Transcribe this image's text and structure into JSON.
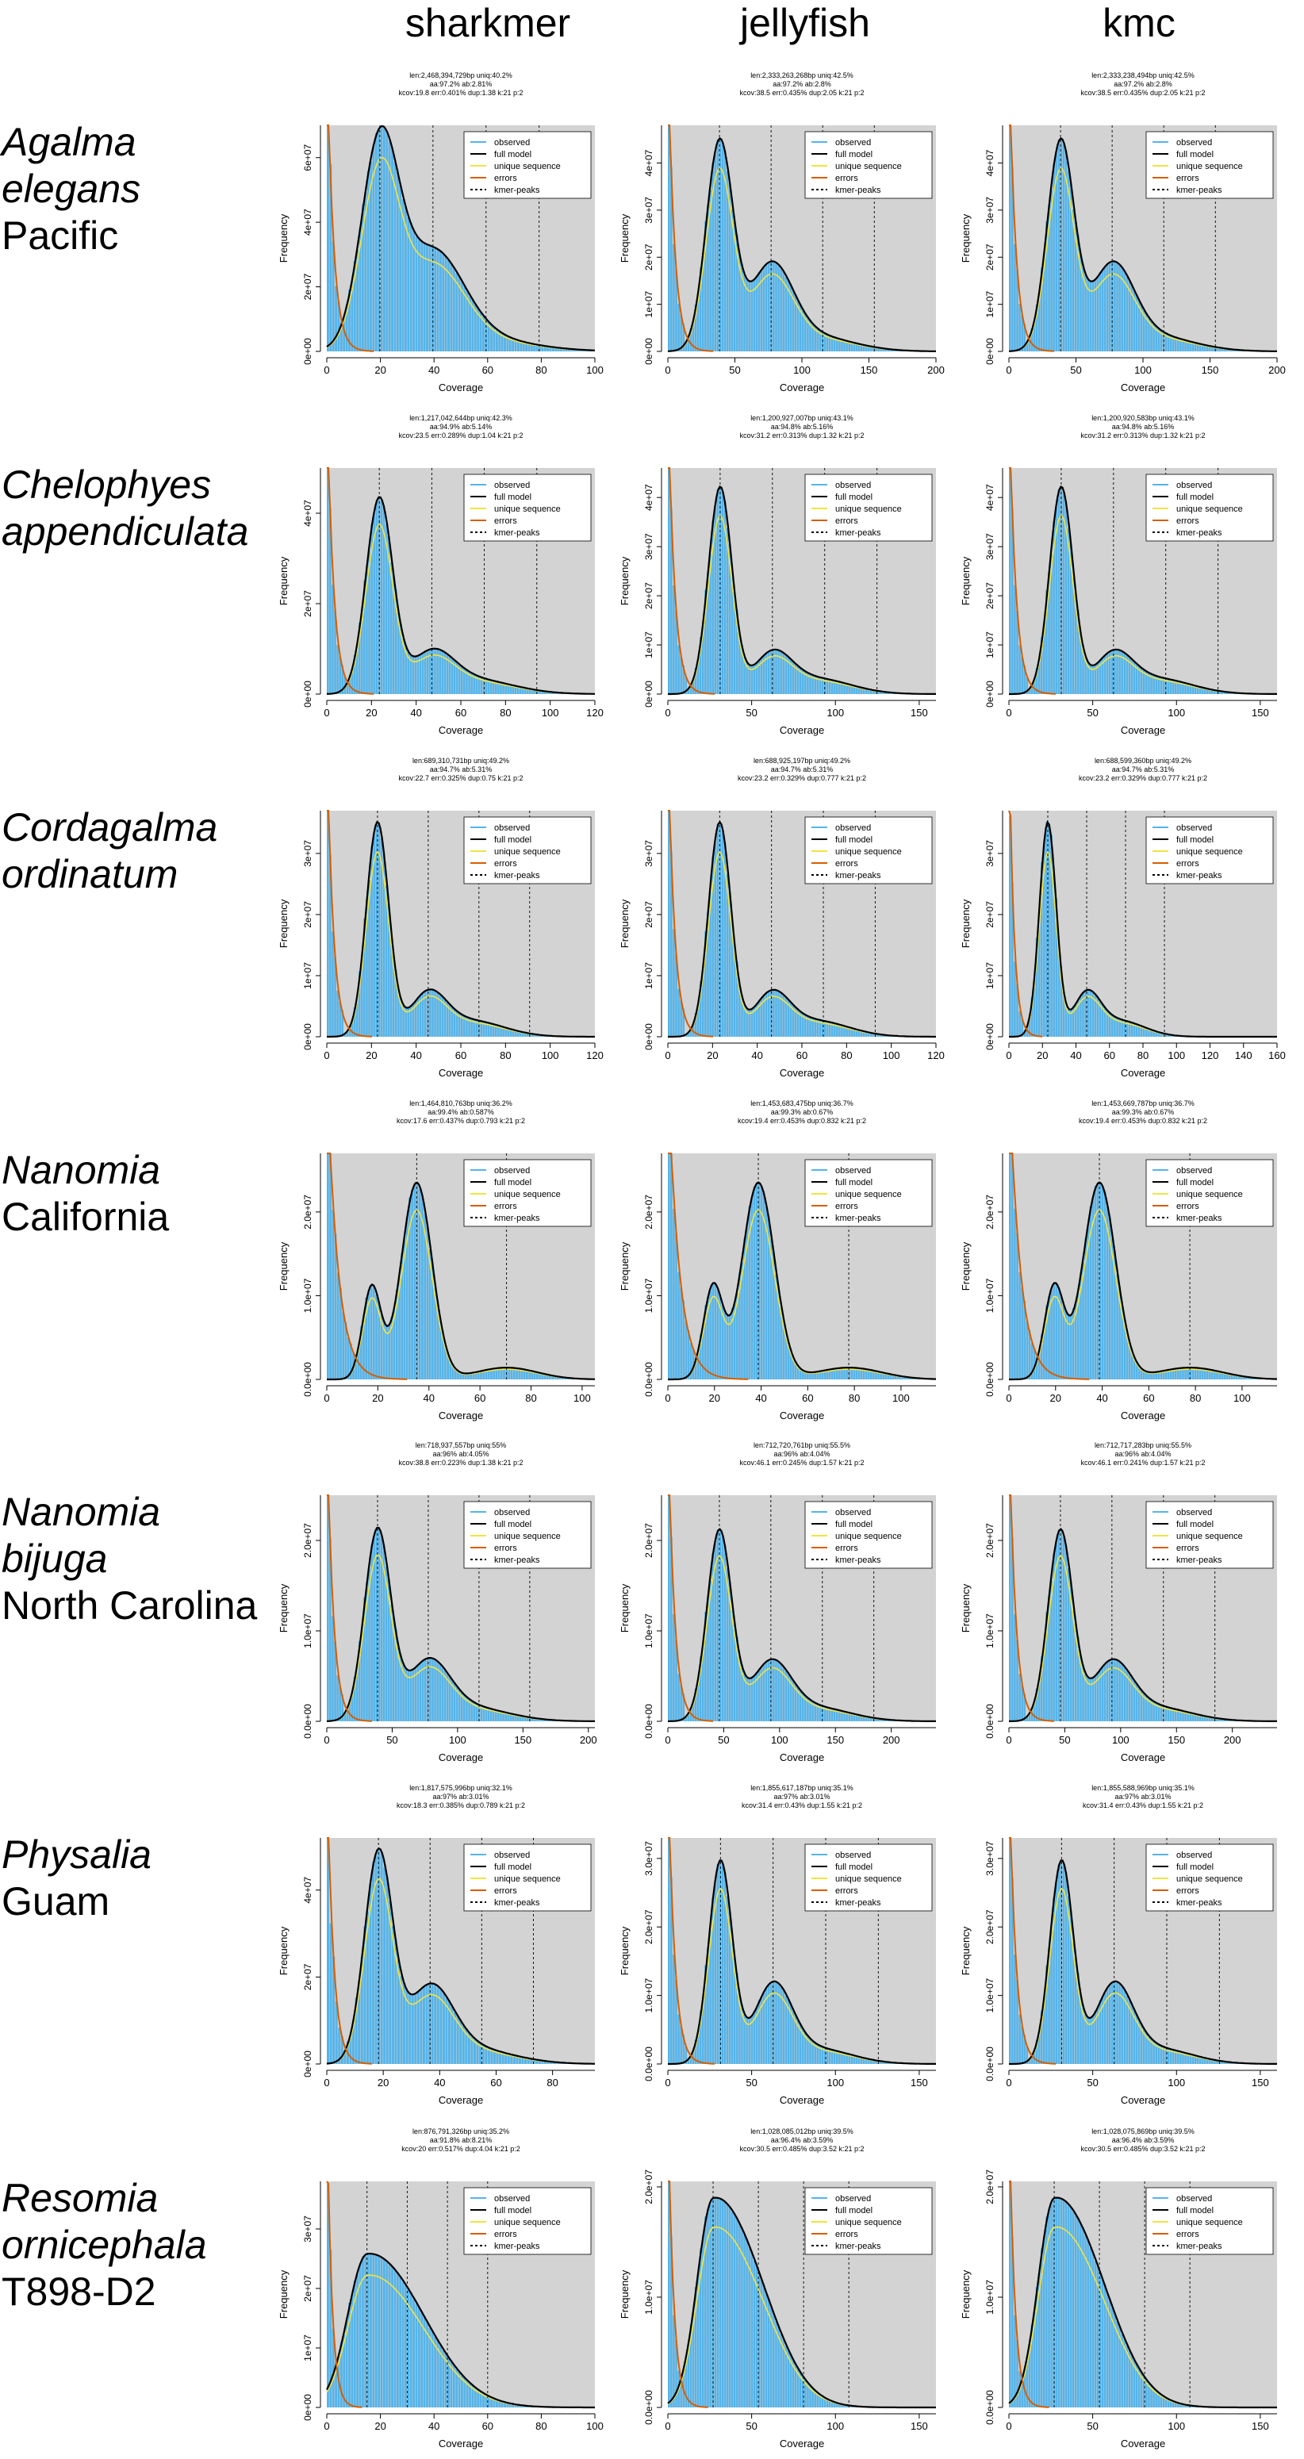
{
  "column_headers": [
    "sharkmer",
    "jellyfish",
    "kmc"
  ],
  "species": [
    {
      "name": [
        "Agalma",
        "elegans"
      ],
      "location": "Pacific"
    },
    {
      "name": [
        "Chelophyes",
        "appendiculata"
      ],
      "location": ""
    },
    {
      "name": [
        "Cordagalma",
        "ordinatum"
      ],
      "location": ""
    },
    {
      "name": [
        "Nanomia"
      ],
      "location": "California"
    },
    {
      "name": [
        "Nanomia",
        "bijuga"
      ],
      "location": "North Carolina"
    },
    {
      "name": [
        "Physalia"
      ],
      "location": "Guam"
    },
    {
      "name": [
        "Resomia",
        "ornicephala"
      ],
      "location": "T898-D2"
    }
  ],
  "legend": [
    "observed",
    "full model",
    "unique sequence",
    "errors",
    "kmer-peaks"
  ],
  "colors": {
    "panel_bg": "#d3d3d3",
    "observed": "#56b4e9",
    "full_model": "#000000",
    "unique_sequence": "#f0e442",
    "errors": "#d55e00",
    "kmer_peaks": "#000000"
  },
  "chart_data": [
    {
      "type": "area",
      "row": 0,
      "col": 0,
      "xmax": 100,
      "xticks": [
        0,
        20,
        40,
        60,
        80,
        100
      ],
      "ymax": 70000000,
      "yticks": [
        "0e+00",
        "2e+07",
        "4e+07",
        "6e+07"
      ],
      "ytickvals": [
        0,
        20000000,
        40000000,
        60000000
      ],
      "peak_x": 19.8,
      "peak_y": 62000000,
      "second_peak_y": 27000000,
      "sigma": 7,
      "header": [
        "len:2,468,394,729bp uniq:40.2%",
        "aa:97.2% ab:2.81%",
        "kcov:19.8 err:0.401% dup:1.38 k:21 p:2"
      ],
      "xlabel": "Coverage",
      "ylabel": "Frequency"
    },
    {
      "type": "area",
      "row": 0,
      "col": 1,
      "xmax": 200,
      "xticks": [
        0,
        50,
        100,
        150,
        200
      ],
      "ymax": 48000000,
      "yticks": [
        "0e+00",
        "1e+07",
        "2e+07",
        "3e+07",
        "4e+07"
      ],
      "ytickvals": [
        0,
        10000000,
        20000000,
        30000000,
        40000000
      ],
      "peak_x": 38.5,
      "peak_y": 44000000,
      "second_peak_y": 17000000,
      "sigma": 10,
      "header": [
        "len:2,333,263,268bp uniq:42.5%",
        "aa:97.2% ab:2.8%",
        "kcov:38.5 err:0.435% dup:2.05 k:21 p:2"
      ],
      "xlabel": "Coverage",
      "ylabel": "Frequency"
    },
    {
      "type": "area",
      "row": 0,
      "col": 2,
      "xmax": 200,
      "xticks": [
        0,
        50,
        100,
        150,
        200
      ],
      "ymax": 48000000,
      "yticks": [
        "0e+00",
        "1e+07",
        "2e+07",
        "3e+07",
        "4e+07"
      ],
      "ytickvals": [
        0,
        10000000,
        20000000,
        30000000,
        40000000
      ],
      "peak_x": 38.5,
      "peak_y": 44000000,
      "second_peak_y": 17000000,
      "sigma": 10,
      "header": [
        "len:2,333,238,494bp uniq:42.5%",
        "aa:97.2% ab:2.8%",
        "kcov:38.5 err:0.435% dup:2.05 k:21 p:2"
      ],
      "xlabel": "Coverage",
      "ylabel": "Frequency"
    },
    {
      "type": "area",
      "row": 1,
      "col": 0,
      "xmax": 120,
      "xticks": [
        0,
        20,
        40,
        60,
        80,
        100,
        120
      ],
      "ymax": 50000000,
      "yticks": [
        "0e+00",
        "2e+07",
        "4e+07"
      ],
      "ytickvals": [
        0,
        20000000,
        40000000
      ],
      "peak_x": 23.5,
      "peak_y": 43000000,
      "second_peak_y": 8000000,
      "sigma": 6,
      "header": [
        "len:1,217,042,644bp uniq:42.3%",
        "aa:94.9% ab:5.14%",
        "kcov:23.5 err:0.289% dup:1.04 k:21 p:2"
      ],
      "xlabel": "Coverage",
      "ylabel": "Frequency"
    },
    {
      "type": "area",
      "row": 1,
      "col": 1,
      "xmax": 160,
      "xticks": [
        0,
        50,
        100,
        150
      ],
      "ymax": 46000000,
      "yticks": [
        "0e+00",
        "1e+07",
        "2e+07",
        "3e+07",
        "4e+07"
      ],
      "ytickvals": [
        0,
        10000000,
        20000000,
        30000000,
        40000000
      ],
      "peak_x": 31.2,
      "peak_y": 42000000,
      "second_peak_y": 7500000,
      "sigma": 7,
      "header": [
        "len:1,200,927,007bp uniq:43.1%",
        "aa:94.8% ab:5.16%",
        "kcov:31.2 err:0.313% dup:1.32 k:21 p:2"
      ],
      "xlabel": "Coverage",
      "ylabel": "Frequency"
    },
    {
      "type": "area",
      "row": 1,
      "col": 2,
      "xmax": 160,
      "xticks": [
        0,
        50,
        100,
        150
      ],
      "ymax": 46000000,
      "yticks": [
        "0e+00",
        "1e+07",
        "2e+07",
        "3e+07",
        "4e+07"
      ],
      "ytickvals": [
        0,
        10000000,
        20000000,
        30000000,
        40000000
      ],
      "peak_x": 31.2,
      "peak_y": 42000000,
      "second_peak_y": 7500000,
      "sigma": 7,
      "header": [
        "len:1,200,920,583bp uniq:43.1%",
        "aa:94.8% ab:5.16%",
        "kcov:31.2 err:0.313% dup:1.32 k:21 p:2"
      ],
      "xlabel": "Coverage",
      "ylabel": "Frequency"
    },
    {
      "type": "area",
      "row": 2,
      "col": 0,
      "xmax": 120,
      "xticks": [
        0,
        20,
        40,
        60,
        80,
        100,
        120
      ],
      "ymax": 37000000,
      "yticks": [
        "0e+00",
        "1e+07",
        "2e+07",
        "3e+07"
      ],
      "ytickvals": [
        0,
        10000000,
        20000000,
        30000000
      ],
      "peak_x": 22.7,
      "peak_y": 35000000,
      "second_peak_y": 6500000,
      "sigma": 5,
      "header": [
        "len:689,310,731bp uniq:49.2%",
        "aa:94.7% ab:5.31%",
        "kcov:22.7 err:0.325% dup:0.75 k:21 p:2"
      ],
      "xlabel": "Coverage",
      "ylabel": "Frequency"
    },
    {
      "type": "area",
      "row": 2,
      "col": 1,
      "xmax": 120,
      "xticks": [
        0,
        20,
        40,
        60,
        80,
        100,
        120
      ],
      "ymax": 37000000,
      "yticks": [
        "0e+00",
        "1e+07",
        "2e+07",
        "3e+07"
      ],
      "ytickvals": [
        0,
        10000000,
        20000000,
        30000000
      ],
      "peak_x": 23.2,
      "peak_y": 35000000,
      "second_peak_y": 6500000,
      "sigma": 5,
      "header": [
        "len:688,925,197bp uniq:49.2%",
        "aa:94.7% ab:5.31%",
        "kcov:23.2 err:0.329% dup:0.777 k:21 p:2"
      ],
      "xlabel": "Coverage",
      "ylabel": "Frequency"
    },
    {
      "type": "area",
      "row": 2,
      "col": 2,
      "xmax": 160,
      "xticks": [
        0,
        20,
        40,
        60,
        80,
        100,
        120,
        140,
        160
      ],
      "ymax": 37000000,
      "yticks": [
        "0e+00",
        "1e+07",
        "2e+07",
        "3e+07"
      ],
      "ytickvals": [
        0,
        10000000,
        20000000,
        30000000
      ],
      "peak_x": 23.2,
      "peak_y": 35000000,
      "second_peak_y": 6500000,
      "sigma": 5,
      "header": [
        "len:688,599,360bp uniq:49.2%",
        "aa:94.7% ab:5.31%",
        "kcov:23.2 err:0.329% dup:0.777 k:21 p:2"
      ],
      "xlabel": "Coverage",
      "ylabel": "Frequency"
    },
    {
      "type": "area",
      "row": 3,
      "col": 0,
      "xmax": 105,
      "xticks": [
        0,
        20,
        40,
        60,
        80,
        100
      ],
      "ymax": 27000000,
      "yticks": [
        "0.0e+00",
        "1.0e+07",
        "2.0e+07"
      ],
      "ytickvals": [
        0,
        10000000,
        20000000
      ],
      "peak_x": 35.2,
      "peak_y": 23500000,
      "second_peak_y": 11000000,
      "sigma": 6,
      "diploid": true,
      "header": [
        "len:1,464,810,763bp uniq:36.2%",
        "aa:99.4% ab:0.587%",
        "kcov:17.6 err:0.437% dup:0.793 k:21 p:2"
      ],
      "xlabel": "Coverage",
      "ylabel": "Frequency"
    },
    {
      "type": "area",
      "row": 3,
      "col": 1,
      "xmax": 115,
      "xticks": [
        0,
        20,
        40,
        60,
        80,
        100
      ],
      "ymax": 27000000,
      "yticks": [
        "0.0e+00",
        "1.0e+07",
        "2.0e+07"
      ],
      "ytickvals": [
        0,
        10000000,
        20000000
      ],
      "peak_x": 38.8,
      "peak_y": 23500000,
      "second_peak_y": 11000000,
      "sigma": 7,
      "diploid": true,
      "header": [
        "len:1,453,683,475bp uniq:36.7%",
        "aa:99.3% ab:0.67%",
        "kcov:19.4 err:0.453% dup:0.832 k:21 p:2"
      ],
      "xlabel": "Coverage",
      "ylabel": "Frequency"
    },
    {
      "type": "area",
      "row": 3,
      "col": 2,
      "xmax": 115,
      "xticks": [
        0,
        20,
        40,
        60,
        80,
        100
      ],
      "ymax": 27000000,
      "yticks": [
        "0.0e+00",
        "1.0e+07",
        "2.0e+07"
      ],
      "ytickvals": [
        0,
        10000000,
        20000000
      ],
      "peak_x": 38.8,
      "peak_y": 23500000,
      "second_peak_y": 11000000,
      "sigma": 7,
      "diploid": true,
      "header": [
        "len:1,453,669,787bp uniq:36.7%",
        "aa:99.3% ab:0.67%",
        "kcov:19.4 err:0.453% dup:0.832 k:21 p:2"
      ],
      "xlabel": "Coverage",
      "ylabel": "Frequency"
    },
    {
      "type": "area",
      "row": 4,
      "col": 0,
      "xmax": 205,
      "xticks": [
        0,
        50,
        100,
        150,
        200
      ],
      "ymax": 25000000,
      "yticks": [
        "0.0e+00",
        "1.0e+07",
        "2.0e+07"
      ],
      "ytickvals": [
        0,
        10000000,
        20000000
      ],
      "peak_x": 38.8,
      "peak_y": 21000000,
      "second_peak_y": 6000000,
      "sigma": 10,
      "header": [
        "len:718,937,557bp uniq:55%",
        "aa:96% ab:4.05%",
        "kcov:38.8 err:0.223% dup:1.38 k:21 p:2"
      ],
      "xlabel": "Coverage",
      "ylabel": "Frequency"
    },
    {
      "type": "area",
      "row": 4,
      "col": 1,
      "xmax": 240,
      "xticks": [
        0,
        50,
        100,
        150,
        200
      ],
      "ymax": 25000000,
      "yticks": [
        "0.0e+00",
        "1.0e+07",
        "2.0e+07"
      ],
      "ytickvals": [
        0,
        10000000,
        20000000
      ],
      "peak_x": 46.1,
      "peak_y": 21000000,
      "second_peak_y": 6000000,
      "sigma": 11,
      "header": [
        "len:712,720,761bp uniq:55.5%",
        "aa:96% ab:4.04%",
        "kcov:46.1 err:0.245% dup:1.57 k:21 p:2"
      ],
      "xlabel": "Coverage",
      "ylabel": "Frequency"
    },
    {
      "type": "area",
      "row": 4,
      "col": 2,
      "xmax": 240,
      "xticks": [
        0,
        50,
        100,
        150,
        200
      ],
      "ymax": 25000000,
      "yticks": [
        "0.0e+00",
        "1.0e+07",
        "2.0e+07"
      ],
      "ytickvals": [
        0,
        10000000,
        20000000
      ],
      "peak_x": 46.1,
      "peak_y": 21000000,
      "second_peak_y": 6000000,
      "sigma": 11,
      "header": [
        "len:712,717,283bp uniq:55.5%",
        "aa:96% ab:4.04%",
        "kcov:46.1 err:0.241% dup:1.57 k:21 p:2"
      ],
      "xlabel": "Coverage",
      "ylabel": "Frequency"
    },
    {
      "type": "area",
      "row": 5,
      "col": 0,
      "xmax": 95,
      "xticks": [
        0,
        20,
        40,
        60,
        80
      ],
      "ymax": 52000000,
      "yticks": [
        "0e+00",
        "2e+07",
        "4e+07"
      ],
      "ytickvals": [
        0,
        20000000,
        40000000
      ],
      "peak_x": 18.3,
      "peak_y": 48000000,
      "second_peak_y": 16000000,
      "sigma": 5,
      "header": [
        "len:1,817,575,996bp uniq:32.1%",
        "aa:97% ab:3.01%",
        "kcov:18.3 err:0.385% dup:0.789 k:21 p:2"
      ],
      "xlabel": "Coverage",
      "ylabel": "Frequency"
    },
    {
      "type": "area",
      "row": 5,
      "col": 1,
      "xmax": 160,
      "xticks": [
        0,
        50,
        100,
        150
      ],
      "ymax": 33000000,
      "yticks": [
        "0.0e+00",
        "1.0e+07",
        "2.0e+07",
        "3.0e+07"
      ],
      "ytickvals": [
        0,
        10000000,
        20000000,
        30000000
      ],
      "peak_x": 31.4,
      "peak_y": 29500000,
      "second_peak_y": 11000000,
      "sigma": 7,
      "header": [
        "len:1,855,617,187bp uniq:35.1%",
        "aa:97% ab:3.01%",
        "kcov:31.4 err:0.43% dup:1.55 k:21 p:2"
      ],
      "xlabel": "Coverage",
      "ylabel": "Frequency"
    },
    {
      "type": "area",
      "row": 5,
      "col": 2,
      "xmax": 160,
      "xticks": [
        0,
        50,
        100,
        150
      ],
      "ymax": 33000000,
      "yticks": [
        "0.0e+00",
        "1.0e+07",
        "2.0e+07",
        "3.0e+07"
      ],
      "ytickvals": [
        0,
        10000000,
        20000000,
        30000000
      ],
      "peak_x": 31.4,
      "peak_y": 29500000,
      "second_peak_y": 11000000,
      "sigma": 7,
      "header": [
        "len:1,855,588,969bp uniq:35.1%",
        "aa:97% ab:3.01%",
        "kcov:31.4 err:0.43% dup:1.55 k:21 p:2"
      ],
      "xlabel": "Coverage",
      "ylabel": "Frequency"
    },
    {
      "type": "area",
      "row": 6,
      "col": 0,
      "xmax": 100,
      "xticks": [
        0,
        20,
        40,
        60,
        80,
        100
      ],
      "ymax": 38000000,
      "yticks": [
        "0e+00",
        "1e+07",
        "2e+07",
        "3e+07"
      ],
      "ytickvals": [
        0,
        10000000,
        20000000,
        30000000
      ],
      "peak_x": 15,
      "peak_y": 25000000,
      "second_peak_y": 5000000,
      "sigma": 9,
      "skew": true,
      "header": [
        "len:876,791,326bp uniq:35.2%",
        "aa:91.8% ab:8.21%",
        "kcov:20 err:0.517% dup:4.04 k:21 p:2"
      ],
      "xlabel": "Coverage",
      "ylabel": "Frequency"
    },
    {
      "type": "area",
      "row": 6,
      "col": 1,
      "xmax": 160,
      "xticks": [
        0,
        50,
        100,
        150
      ],
      "ymax": 20500000,
      "yticks": [
        "0.0e+00",
        "1.0e+07",
        "2.0e+07"
      ],
      "ytickvals": [
        0,
        10000000,
        20000000
      ],
      "peak_x": 27,
      "peak_y": 18500000,
      "second_peak_y": 5000000,
      "sigma": 12,
      "skew": true,
      "header": [
        "len:1,028,085,012bp uniq:39.5%",
        "aa:96.4% ab:3.59%",
        "kcov:30.5 err:0.485% dup:3.52 k:21 p:2"
      ],
      "xlabel": "Coverage",
      "ylabel": "Frequency"
    },
    {
      "type": "area",
      "row": 6,
      "col": 2,
      "xmax": 160,
      "xticks": [
        0,
        50,
        100,
        150
      ],
      "ymax": 20500000,
      "yticks": [
        "0.0e+00",
        "1.0e+07",
        "2.0e+07"
      ],
      "ytickvals": [
        0,
        10000000,
        20000000
      ],
      "peak_x": 27,
      "peak_y": 18500000,
      "second_peak_y": 5000000,
      "sigma": 12,
      "skew": true,
      "header": [
        "len:1,028,075,869bp uniq:39.5%",
        "aa:96.4% ab:3.59%",
        "kcov:30.5 err:0.485% dup:3.52 k:21 p:2"
      ],
      "xlabel": "Coverage",
      "ylabel": "Frequency"
    }
  ]
}
